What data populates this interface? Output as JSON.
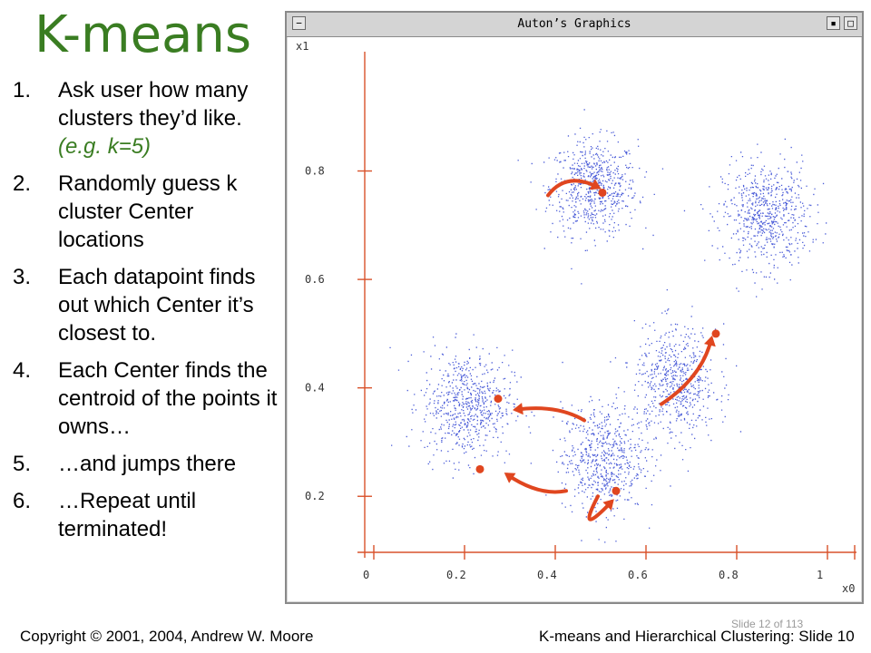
{
  "slide": {
    "title": "K-means",
    "steps": [
      {
        "num": "1.",
        "text": "Ask user how many clusters they’d like.",
        "example": "(e.g. k=5)"
      },
      {
        "num": "2.",
        "text": "Randomly guess k cluster Center locations"
      },
      {
        "num": "3.",
        "text": "Each datapoint finds out which Center it’s closest to."
      },
      {
        "num": "4.",
        "text": "Each Center finds the centroid of the points it owns…"
      },
      {
        "num": "5.",
        "text": "…and jumps there"
      },
      {
        "num": "6.",
        "text": "…Repeat until terminated!"
      }
    ],
    "footer_left": "Copyright © 2001, 2004, Andrew W. Moore",
    "footer_right": "K-means and Hierarchical Clustering: Slide 10",
    "slide_counter": "Slide 12 of 113"
  },
  "window": {
    "title": "Auton’s Graphics",
    "buttons": {
      "menu": "−",
      "iconify": "▪",
      "maximize": "□"
    }
  },
  "colors": {
    "title_green": "#3a7d22",
    "axis_red": "#d9522b",
    "points_blue": "#4a5cd8",
    "center_red": "#e0461f"
  },
  "chart_data": {
    "type": "scatter",
    "xlabel": "x0",
    "ylabel": "x1",
    "xlim": [
      -0.02,
      1.08
    ],
    "ylim": [
      0.09,
      1.02
    ],
    "x_ticks": [
      "0",
      "0.2",
      "0.4",
      "0.6",
      "0.8",
      "1"
    ],
    "y_ticks": [
      "0.2",
      "0.4",
      "0.6",
      "0.8"
    ],
    "clusters": [
      {
        "cx": 0.5,
        "cy": 0.77,
        "sx": 0.048,
        "sy": 0.044,
        "n": 650
      },
      {
        "cx": 0.88,
        "cy": 0.72,
        "sx": 0.048,
        "sy": 0.048,
        "n": 650
      },
      {
        "cx": 0.22,
        "cy": 0.37,
        "sx": 0.05,
        "sy": 0.05,
        "n": 650
      },
      {
        "cx": 0.52,
        "cy": 0.27,
        "sx": 0.045,
        "sy": 0.05,
        "n": 600
      },
      {
        "cx": 0.68,
        "cy": 0.41,
        "sx": 0.045,
        "sy": 0.052,
        "n": 600
      }
    ],
    "centers": [
      {
        "x": 0.52,
        "y": 0.76
      },
      {
        "x": 0.77,
        "y": 0.5
      },
      {
        "x": 0.29,
        "y": 0.38
      },
      {
        "x": 0.25,
        "y": 0.25
      },
      {
        "x": 0.55,
        "y": 0.21
      }
    ],
    "arrows": [
      {
        "from": [
          0.4,
          0.755
        ],
        "ctrl": [
          0.44,
          0.8
        ],
        "to": [
          0.51,
          0.77
        ]
      },
      {
        "from": [
          0.65,
          0.37
        ],
        "ctrl": [
          0.74,
          0.42
        ],
        "to": [
          0.76,
          0.49
        ]
      },
      {
        "from": [
          0.48,
          0.34
        ],
        "ctrl": [
          0.42,
          0.37
        ],
        "to": [
          0.33,
          0.36
        ]
      },
      {
        "from": [
          0.44,
          0.21
        ],
        "ctrl": [
          0.38,
          0.2
        ],
        "to": [
          0.31,
          0.24
        ]
      },
      {
        "from": [
          0.51,
          0.2
        ],
        "ctrl": [
          0.46,
          0.12
        ],
        "to": [
          0.54,
          0.19
        ]
      }
    ]
  }
}
